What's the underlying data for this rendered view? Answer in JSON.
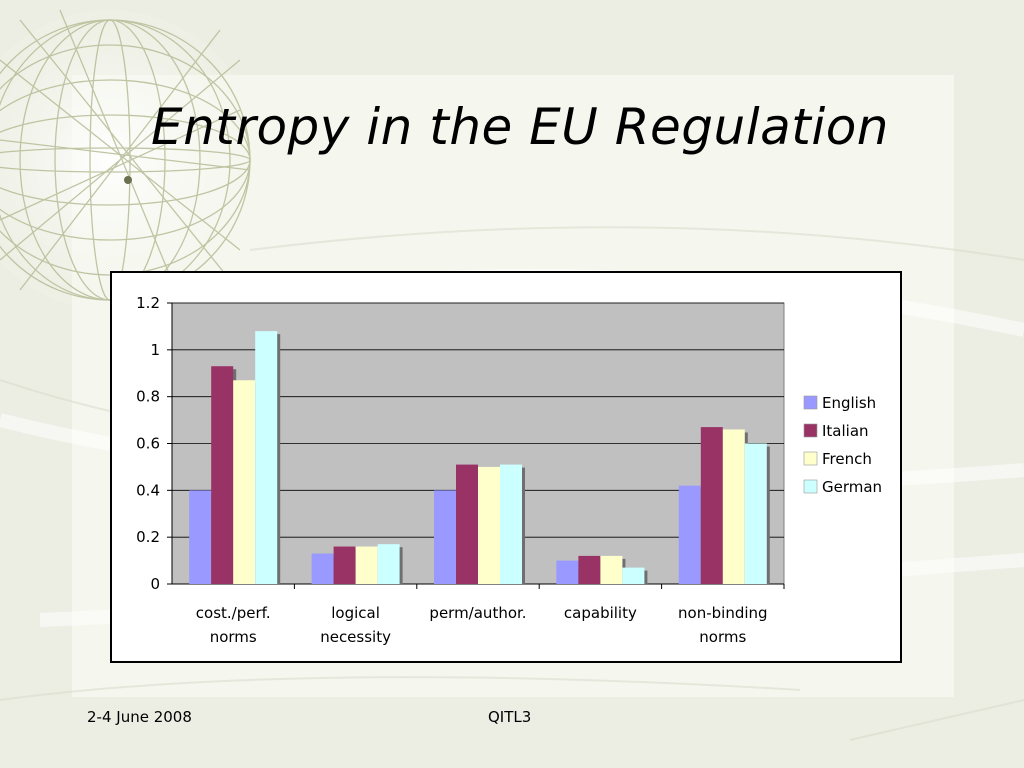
{
  "slide": {
    "title": "Entropy in the EU Regulation",
    "footer_date": "2-4 June 2008",
    "footer_conference": "QITL3"
  },
  "chart_data": {
    "type": "bar",
    "categories": [
      [
        "cost./perf.",
        "norms"
      ],
      [
        "logical",
        "necessity"
      ],
      [
        "perm/author."
      ],
      [
        "capability"
      ],
      [
        "non-binding",
        "norms"
      ]
    ],
    "series": [
      {
        "name": "English",
        "color": "#9999ff",
        "values": [
          0.4,
          0.13,
          0.4,
          0.1,
          0.42
        ]
      },
      {
        "name": "Italian",
        "color": "#993366",
        "values": [
          0.93,
          0.16,
          0.51,
          0.12,
          0.67
        ]
      },
      {
        "name": "French",
        "color": "#ffffcc",
        "values": [
          0.87,
          0.16,
          0.5,
          0.12,
          0.66
        ]
      },
      {
        "name": "German",
        "color": "#ccffff",
        "values": [
          1.08,
          0.17,
          0.51,
          0.07,
          0.6
        ]
      }
    ],
    "yticks": [
      "0",
      "0.2",
      "0.4",
      "0.6",
      "0.8",
      "1",
      "1.2"
    ],
    "ylim": [
      0,
      1.2
    ],
    "plot_background": "#c0c0c0",
    "grid": true,
    "legend_position": "right"
  }
}
